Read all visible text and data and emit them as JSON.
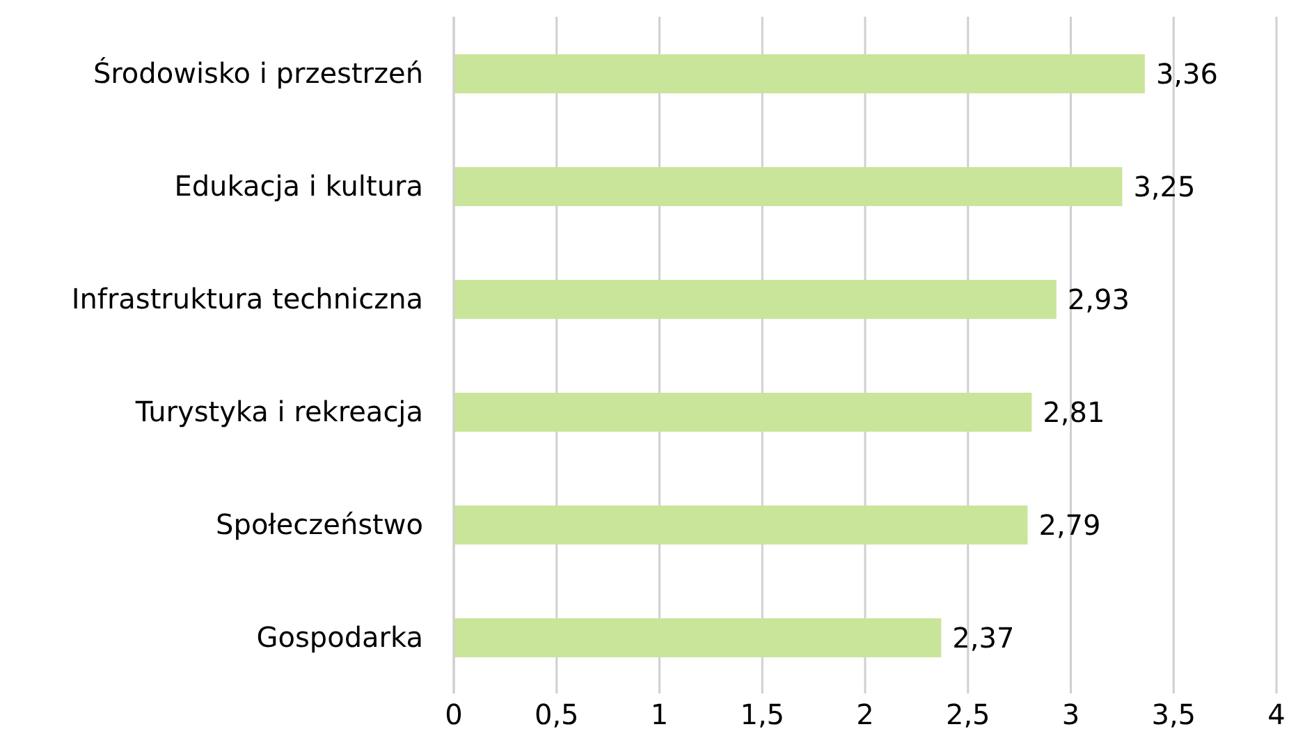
{
  "chart_data": {
    "type": "bar",
    "orientation": "horizontal",
    "categories": [
      "Środowisko i przestrzeń",
      "Edukacja i kultura",
      "Infrastruktura techniczna",
      "Turystyka i rekreacja",
      "Społeczeństwo",
      "Gospodarka"
    ],
    "values": [
      3.36,
      3.25,
      2.93,
      2.81,
      2.79,
      2.37
    ],
    "value_labels": [
      "3,36",
      "3,25",
      "2,93",
      "2,81",
      "2,79",
      "2,37"
    ],
    "color": "#c9e59a",
    "xlim": [
      0,
      4
    ],
    "xticks": [
      0,
      {
        "value": 0.5,
        "label": "0,5"
      },
      1,
      {
        "value": 1.5,
        "label": "1,5"
      },
      2,
      {
        "value": 2.5,
        "label": "2,5"
      },
      3,
      {
        "value": 3.5,
        "label": "3,5"
      },
      4
    ],
    "grid": "x"
  }
}
